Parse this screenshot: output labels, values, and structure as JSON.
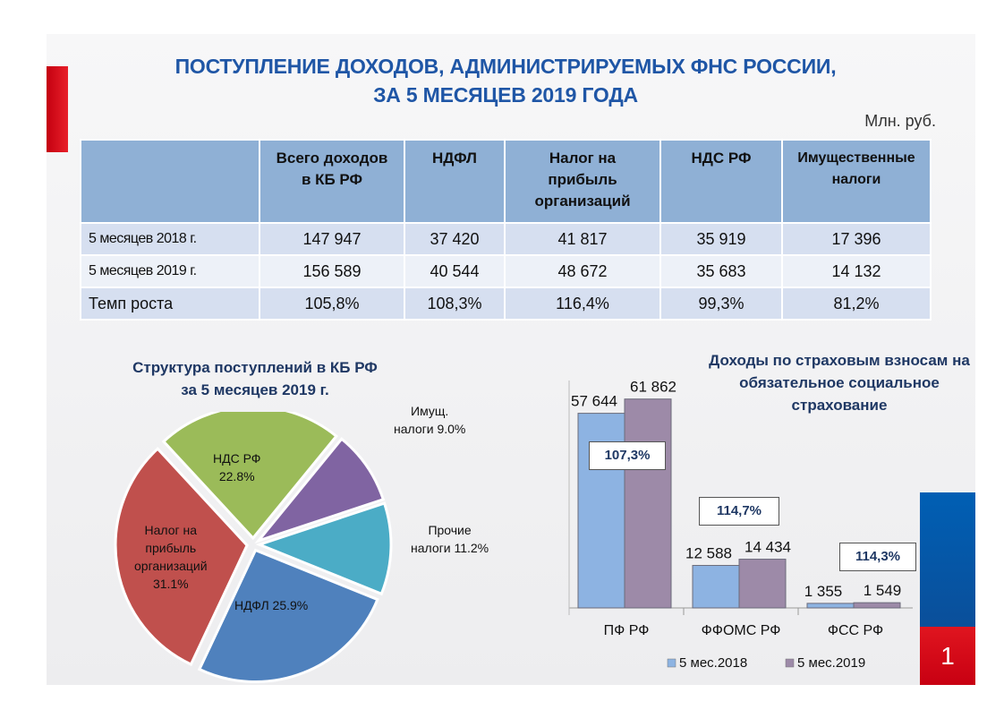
{
  "header": {
    "title_line1": "ПОСТУПЛЕНИЕ ДОХОДОВ, АДМИНИСТРИРУЕМЫХ ФНС РОССИИ,",
    "title_line2": "ЗА 5 МЕСЯЦЕВ  2019 ГОДА",
    "unit": "Млн. руб."
  },
  "table": {
    "headers": [
      {
        "l1": "",
        "l2": "",
        "l3": ""
      },
      {
        "l1": "Всего доходов",
        "l2": "в КБ РФ",
        "l3": ""
      },
      {
        "l1": "НДФЛ",
        "l2": "",
        "l3": ""
      },
      {
        "l1": "Налог на",
        "l2": "прибыль",
        "l3": "организаций"
      },
      {
        "l1": "НДС РФ",
        "l2": "",
        "l3": ""
      },
      {
        "l1": "Имущественные",
        "l2": "налоги",
        "l3": ""
      }
    ],
    "rows": [
      {
        "label": "5 месяцев 2018 г.",
        "values": [
          "147 947",
          "37 420",
          "41 817",
          "35 919",
          "17 396"
        ]
      },
      {
        "label": "5 месяцев 2019 г.",
        "values": [
          "156 589",
          "40 544",
          "48 672",
          "35 683",
          "14 132"
        ]
      },
      {
        "label": "Темп роста",
        "values": [
          "105,8%",
          "108,3%",
          "116,4%",
          "99,3%",
          "81,2%"
        ]
      }
    ]
  },
  "chart_data": [
    {
      "type": "pie",
      "title_line1": "Структура  поступлений в КБ РФ",
      "title_line2": "за 5 месяцев 2019 г.",
      "slices": [
        {
          "label_line1": "НДФЛ 25.9%",
          "label_line2": "",
          "value": 25.9,
          "color": "#4f81bd"
        },
        {
          "label_line1": "Налог на",
          "label_line2": "прибыль",
          "label_line3": "организаций",
          "label_line4": "31.1%",
          "value": 31.1,
          "color": "#c0504d"
        },
        {
          "label_line1": "НДС РФ",
          "label_line2": "22.8%",
          "value": 22.8,
          "color": "#9bbb59"
        },
        {
          "label_line1": "Имущ.",
          "label_line2": "налоги 9.0%",
          "value": 9.0,
          "color": "#8064a2"
        },
        {
          "label_line1": "Прочие",
          "label_line2": "налоги 11.2%",
          "value": 11.2,
          "color": "#4bacc6"
        }
      ]
    },
    {
      "type": "bar",
      "title_line1": "Доходы по страховым взносам на",
      "title_line2": "обязательное социальное",
      "title_line3": "страхование",
      "categories": [
        "ПФ РФ",
        "ФФОМС РФ",
        "ФСС РФ"
      ],
      "series": [
        {
          "name": "5 мес.2018",
          "values": [
            57644,
            12588,
            1355
          ],
          "labels": [
            "57 644",
            "12 588",
            "1 355"
          ],
          "color": "#8db3e2"
        },
        {
          "name": "5 мес.2019",
          "values": [
            61862,
            14434,
            1549
          ],
          "labels": [
            "61 862",
            "14 434",
            "1 549"
          ],
          "color": "#9d8aa8"
        }
      ],
      "growth": [
        "107,3%",
        "114,7%",
        "114,3%"
      ],
      "ylim": [
        0,
        70000
      ]
    }
  ],
  "page_number": "1"
}
